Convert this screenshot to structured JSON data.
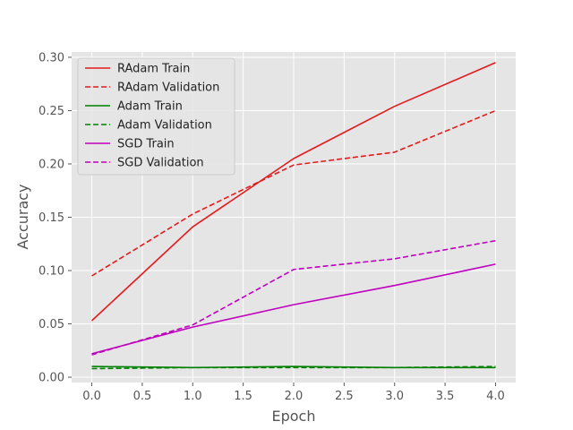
{
  "chart_data": {
    "type": "line",
    "xlabel": "Epoch",
    "ylabel": "Accuracy",
    "xlim": [
      -0.2,
      4.2
    ],
    "ylim": [
      -0.005,
      0.305
    ],
    "xticks": [
      "0.0",
      "0.5",
      "1.0",
      "1.5",
      "2.0",
      "2.5",
      "3.0",
      "3.5",
      "4.0"
    ],
    "yticks": [
      "0.00",
      "0.05",
      "0.10",
      "0.15",
      "0.20",
      "0.25",
      "0.30"
    ],
    "grid": true,
    "legend_position": "top-left",
    "x": [
      0,
      1,
      2,
      3,
      4
    ],
    "series": [
      {
        "name": "RAdam Train",
        "color": "#e41a1c",
        "style": "solid",
        "values": [
          0.053,
          0.141,
          0.205,
          0.254,
          0.295
        ]
      },
      {
        "name": "RAdam Validation",
        "color": "#e41a1c",
        "style": "dashed",
        "values": [
          0.095,
          0.153,
          0.199,
          0.211,
          0.25
        ]
      },
      {
        "name": "Adam Train",
        "color": "#008000",
        "style": "solid",
        "values": [
          0.01,
          0.009,
          0.01,
          0.009,
          0.009
        ]
      },
      {
        "name": "Adam Validation",
        "color": "#008000",
        "style": "dashed",
        "values": [
          0.008,
          0.009,
          0.009,
          0.009,
          0.01
        ]
      },
      {
        "name": "SGD Train",
        "color": "#bf00bf",
        "style": "solid",
        "values": [
          0.022,
          0.047,
          0.068,
          0.086,
          0.106
        ]
      },
      {
        "name": "SGD Validation",
        "color": "#bf00bf",
        "style": "dashed",
        "values": [
          0.021,
          0.049,
          0.101,
          0.111,
          0.128
        ]
      }
    ]
  }
}
